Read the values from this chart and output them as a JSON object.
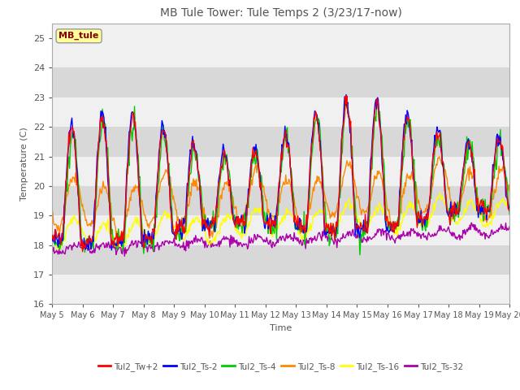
{
  "title": "MB Tule Tower: Tule Temps 2 (3/23/17-now)",
  "xlabel": "Time",
  "ylabel": "Temperature (C)",
  "ylim": [
    16.0,
    25.5
  ],
  "yticks": [
    16.0,
    17.0,
    18.0,
    19.0,
    20.0,
    21.0,
    22.0,
    23.0,
    24.0,
    25.0
  ],
  "legend_label": "MB_tule",
  "series_labels": [
    "Tul2_Tw+2",
    "Tul2_Ts-2",
    "Tul2_Ts-4",
    "Tul2_Ts-8",
    "Tul2_Ts-16",
    "Tul2_Ts-32"
  ],
  "series_colors": [
    "#ff0000",
    "#0000ff",
    "#00cc00",
    "#ff8800",
    "#ffff00",
    "#aa00aa"
  ],
  "line_width": 1.0,
  "bg_color": "#ffffff",
  "plot_bg_color_light": "#f0f0f0",
  "plot_bg_color_dark": "#d8d8d8",
  "title_color": "#555555",
  "axis_label_color": "#555555",
  "tick_color": "#555555",
  "annotation_text_color": "#880000",
  "annotation_bg": "#ffff99",
  "annotation_edge": "#999999"
}
